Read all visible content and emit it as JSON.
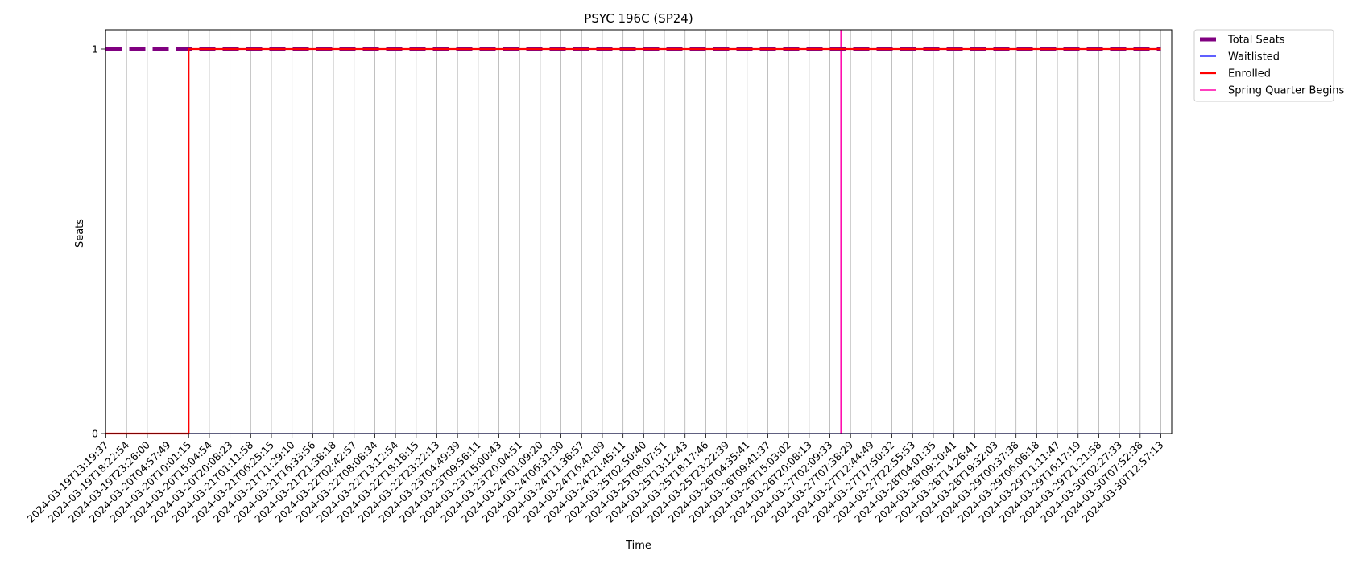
{
  "chart_data": {
    "type": "line",
    "title": "PSYC 196C (SP24)",
    "xlabel": "Time",
    "ylabel": "Seats",
    "ylim": [
      0,
      1
    ],
    "yticks": [
      "0",
      "1"
    ],
    "grid": "vertical",
    "legend_position": "outside-top-right",
    "x": [
      "2024-03-19T13:19:37",
      "2024-03-19T18:22:54",
      "2024-03-19T23:26:00",
      "2024-03-20T04:57:49",
      "2024-03-20T10:01:15",
      "2024-03-20T15:04:54",
      "2024-03-20T20:08:23",
      "2024-03-21T01:11:58",
      "2024-03-21T06:25:15",
      "2024-03-21T11:29:10",
      "2024-03-21T16:33:56",
      "2024-03-21T21:38:18",
      "2024-03-22T02:42:57",
      "2024-03-22T08:08:34",
      "2024-03-22T13:12:54",
      "2024-03-22T18:18:15",
      "2024-03-22T23:22:13",
      "2024-03-23T04:49:39",
      "2024-03-23T09:56:11",
      "2024-03-23T15:00:43",
      "2024-03-23T20:04:51",
      "2024-03-24T01:09:20",
      "2024-03-24T06:31:30",
      "2024-03-24T11:36:57",
      "2024-03-24T16:41:09",
      "2024-03-24T21:45:11",
      "2024-03-25T02:50:40",
      "2024-03-25T08:07:51",
      "2024-03-25T13:12:43",
      "2024-03-25T18:17:46",
      "2024-03-25T23:22:39",
      "2024-03-26T04:35:41",
      "2024-03-26T09:41:37",
      "2024-03-26T15:03:02",
      "2024-03-26T20:08:13",
      "2024-03-27T02:09:33",
      "2024-03-27T07:38:29",
      "2024-03-27T12:44:49",
      "2024-03-27T17:50:32",
      "2024-03-27T22:55:53",
      "2024-03-28T04:01:35",
      "2024-03-28T09:20:41",
      "2024-03-28T14:26:41",
      "2024-03-28T19:32:03",
      "2024-03-29T00:37:38",
      "2024-03-29T06:06:18",
      "2024-03-29T11:11:47",
      "2024-03-29T16:17:19",
      "2024-03-29T21:21:58",
      "2024-03-30T02:27:33",
      "2024-03-30T07:52:38",
      "2024-03-30T12:57:13"
    ],
    "series": [
      {
        "name": "Total Seats",
        "color": "#800080",
        "style": "dashed",
        "values": [
          1,
          1,
          1,
          1,
          1,
          1,
          1,
          1,
          1,
          1,
          1,
          1,
          1,
          1,
          1,
          1,
          1,
          1,
          1,
          1,
          1,
          1,
          1,
          1,
          1,
          1,
          1,
          1,
          1,
          1,
          1,
          1,
          1,
          1,
          1,
          1,
          1,
          1,
          1,
          1,
          1,
          1,
          1,
          1,
          1,
          1,
          1,
          1,
          1,
          1,
          1,
          1
        ]
      },
      {
        "name": "Waitlisted",
        "color": "#0000ff",
        "style": "solid",
        "values": [
          0,
          0,
          0,
          0,
          0,
          0,
          0,
          0,
          0,
          0,
          0,
          0,
          0,
          0,
          0,
          0,
          0,
          0,
          0,
          0,
          0,
          0,
          0,
          0,
          0,
          0,
          0,
          0,
          0,
          0,
          0,
          0,
          0,
          0,
          0,
          0,
          0,
          0,
          0,
          0,
          0,
          0,
          0,
          0,
          0,
          0,
          0,
          0,
          0,
          0,
          0,
          0
        ]
      },
      {
        "name": "Enrolled",
        "color": "#ff0000",
        "style": "solid",
        "values": [
          0,
          0,
          0,
          0,
          1,
          1,
          1,
          1,
          1,
          1,
          1,
          1,
          1,
          1,
          1,
          1,
          1,
          1,
          1,
          1,
          1,
          1,
          1,
          1,
          1,
          1,
          1,
          1,
          1,
          1,
          1,
          1,
          1,
          1,
          1,
          1,
          1,
          1,
          1,
          1,
          1,
          1,
          1,
          1,
          1,
          1,
          1,
          1,
          1,
          1,
          1,
          1
        ]
      }
    ],
    "annotations": [
      {
        "name": "Spring Quarter Begins",
        "color": "#ff00aa",
        "x": "2024-03-27T05:00:00"
      }
    ],
    "legend": [
      "Total Seats",
      "Waitlisted",
      "Enrolled",
      "Spring Quarter Begins"
    ]
  }
}
